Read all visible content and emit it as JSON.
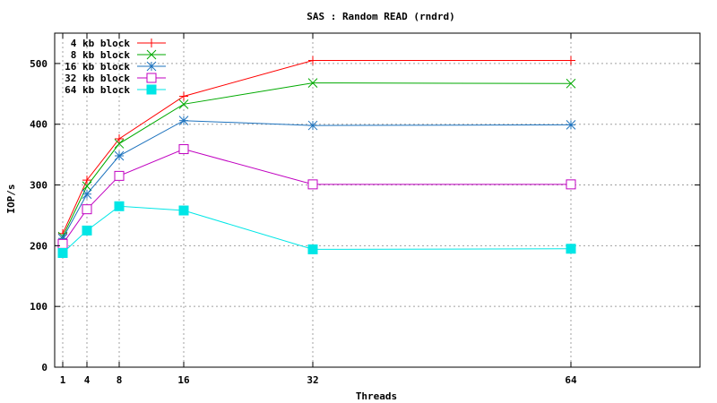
{
  "chart_data": {
    "type": "line",
    "title": "SAS : Random READ (rndrd)",
    "xlabel": "Threads",
    "ylabel": "IOP/s",
    "xlim": [
      0,
      80
    ],
    "ylim": [
      0,
      550
    ],
    "x_ticks": [
      "1",
      "4",
      "8",
      "16",
      "32",
      "64"
    ],
    "y_ticks": [
      "0",
      "100",
      "200",
      "300",
      "400",
      "500"
    ],
    "grid": true,
    "legend_position": "top-left",
    "x": [
      1,
      4,
      8,
      16,
      32,
      64
    ],
    "series": [
      {
        "name": "4 kb block",
        "color": "#ff0000",
        "marker": "plus",
        "values": [
          220,
          308,
          376,
          446,
          505,
          505
        ]
      },
      {
        "name": "8 kb block",
        "color": "#00aa00",
        "marker": "cross",
        "values": [
          215,
          298,
          368,
          433,
          468,
          467
        ]
      },
      {
        "name": "16 kb block",
        "color": "#1e73be",
        "marker": "star",
        "values": [
          212,
          285,
          348,
          406,
          398,
          399
        ]
      },
      {
        "name": "32 kb block",
        "color": "#c000c0",
        "marker": "open-square",
        "values": [
          203,
          260,
          315,
          359,
          301,
          301
        ]
      },
      {
        "name": "64 kb block",
        "color": "#00e6e6",
        "marker": "filled-square",
        "values": [
          188,
          225,
          265,
          258,
          194,
          195
        ]
      }
    ]
  }
}
